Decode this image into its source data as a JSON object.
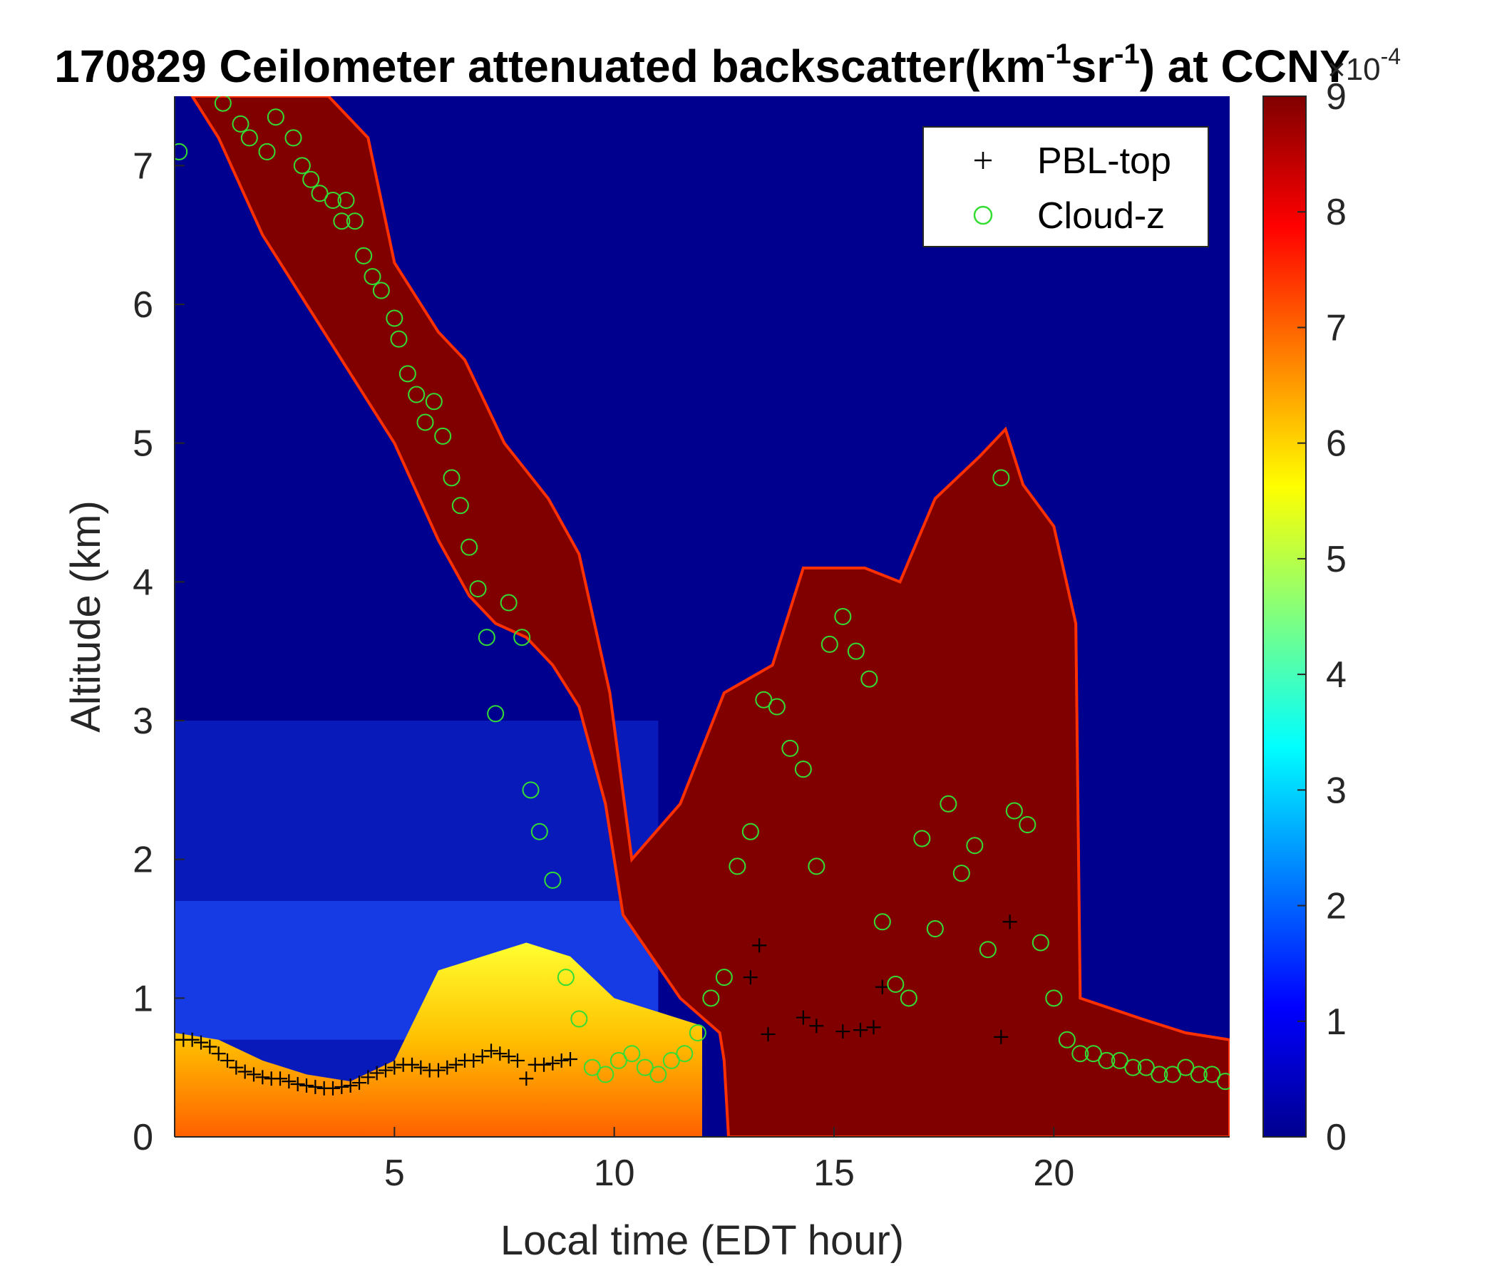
{
  "chart_data": {
    "type": "heatmap",
    "title": {
      "main": "170829 Ceilometer attenuated backscatter(km",
      "sup1": "-1",
      "mid": "sr",
      "sup2": "-1",
      "end": ") at CCNY"
    },
    "xlabel": "Local time (EDT hour)",
    "ylabel": "Altitude (km)",
    "xlim": [
      0,
      24
    ],
    "ylim": [
      0,
      7.5
    ],
    "xticks": [
      5,
      10,
      15,
      20
    ],
    "yticks": [
      0,
      1,
      2,
      3,
      4,
      5,
      6,
      7
    ],
    "colorbar": {
      "colormap": "jet",
      "range": [
        0,
        9
      ],
      "ticks": [
        0,
        1,
        2,
        3,
        4,
        5,
        6,
        7,
        8,
        9
      ],
      "exponent_base": "×10",
      "exponent": "-4"
    },
    "legend": {
      "placement": "top-right",
      "entries": [
        {
          "label": "PBL-top",
          "marker": "+",
          "color": "#000000"
        },
        {
          "label": "Cloud-z",
          "marker": "o",
          "color": "#33dd33"
        }
      ]
    },
    "cloud_layer": {
      "top_km": [
        [
          0.4,
          7.5
        ],
        [
          3.5,
          7.5
        ],
        [
          4.4,
          7.2
        ],
        [
          5.0,
          6.3
        ],
        [
          6.0,
          5.8
        ],
        [
          6.6,
          5.6
        ],
        [
          7.5,
          5.0
        ],
        [
          8.5,
          4.6
        ],
        [
          9.2,
          4.2
        ],
        [
          9.9,
          3.2
        ],
        [
          10.4,
          2.0
        ],
        [
          11.5,
          2.4
        ],
        [
          12.5,
          3.2
        ],
        [
          13.6,
          3.4
        ],
        [
          14.3,
          4.1
        ],
        [
          15.7,
          4.1
        ],
        [
          16.5,
          4.0
        ],
        [
          17.3,
          4.6
        ],
        [
          18.3,
          4.9
        ],
        [
          18.9,
          5.1
        ],
        [
          19.3,
          4.7
        ],
        [
          20.0,
          4.4
        ],
        [
          20.5,
          3.7
        ],
        [
          20.6,
          1.0
        ],
        [
          22.0,
          0.85
        ],
        [
          23.0,
          0.75
        ],
        [
          24.0,
          0.7
        ]
      ],
      "bottom_km": [
        [
          0.4,
          7.5
        ],
        [
          1.0,
          7.2
        ],
        [
          2.0,
          6.5
        ],
        [
          3.0,
          6.0
        ],
        [
          4.0,
          5.5
        ],
        [
          5.0,
          5.0
        ],
        [
          6.0,
          4.3
        ],
        [
          6.7,
          3.9
        ],
        [
          7.3,
          3.7
        ],
        [
          8.0,
          3.6
        ],
        [
          8.6,
          3.4
        ],
        [
          9.2,
          3.1
        ],
        [
          9.8,
          2.4
        ],
        [
          10.2,
          1.6
        ],
        [
          11.5,
          1.0
        ],
        [
          12.4,
          0.75
        ],
        [
          12.5,
          0.55
        ],
        [
          12.6,
          0.0
        ],
        [
          24.0,
          0.0
        ]
      ]
    },
    "pbl_top": {
      "x": [
        0.0,
        0.2,
        0.4,
        0.6,
        0.8,
        1.0,
        1.2,
        1.4,
        1.6,
        1.8,
        2.0,
        2.2,
        2.4,
        2.6,
        2.8,
        3.0,
        3.2,
        3.4,
        3.6,
        3.8,
        4.0,
        4.2,
        4.4,
        4.6,
        4.8,
        5.0,
        5.2,
        5.4,
        5.6,
        5.8,
        6.0,
        6.2,
        6.4,
        6.6,
        6.8,
        7.0,
        7.2,
        7.4,
        7.6,
        7.8,
        8.0,
        8.2,
        8.4,
        8.6,
        8.8,
        9.0,
        13.1,
        13.3,
        13.5,
        14.3,
        14.6,
        15.2,
        15.6,
        15.9,
        16.1,
        18.8,
        19.0
      ],
      "y": [
        0.7,
        0.7,
        0.7,
        0.68,
        0.65,
        0.6,
        0.55,
        0.5,
        0.47,
        0.45,
        0.43,
        0.42,
        0.42,
        0.4,
        0.38,
        0.37,
        0.36,
        0.35,
        0.35,
        0.36,
        0.37,
        0.39,
        0.43,
        0.46,
        0.48,
        0.5,
        0.52,
        0.52,
        0.5,
        0.48,
        0.48,
        0.5,
        0.52,
        0.55,
        0.55,
        0.58,
        0.62,
        0.6,
        0.58,
        0.55,
        0.42,
        0.52,
        0.52,
        0.53,
        0.55,
        0.56,
        1.15,
        1.38,
        0.74,
        0.86,
        0.8,
        0.76,
        0.77,
        0.79,
        1.08,
        0.72,
        1.55
      ]
    },
    "cloud_z": {
      "x": [
        0.1,
        1.1,
        1.5,
        1.7,
        2.1,
        2.3,
        2.7,
        2.9,
        3.1,
        3.3,
        3.6,
        3.8,
        3.9,
        4.1,
        4.3,
        4.5,
        4.7,
        5.0,
        5.1,
        5.3,
        5.5,
        5.7,
        5.9,
        6.1,
        6.3,
        6.5,
        6.7,
        6.9,
        7.1,
        7.3,
        7.6,
        7.9,
        8.1,
        8.3,
        8.6,
        8.9,
        9.2,
        9.5,
        9.8,
        10.1,
        10.4,
        10.7,
        11.0,
        11.3,
        11.6,
        11.9,
        12.2,
        12.5,
        12.8,
        13.1,
        13.4,
        13.7,
        14.0,
        14.3,
        14.6,
        14.9,
        15.2,
        15.5,
        15.8,
        16.1,
        16.4,
        16.7,
        17.0,
        17.3,
        17.6,
        17.9,
        18.2,
        18.5,
        18.8,
        19.1,
        19.4,
        19.7,
        20.0,
        20.3,
        20.6,
        20.9,
        21.2,
        21.5,
        21.8,
        22.1,
        22.4,
        22.7,
        23.0,
        23.3,
        23.6,
        23.9
      ],
      "y": [
        7.1,
        7.45,
        7.3,
        7.2,
        7.1,
        7.35,
        7.2,
        7.0,
        6.9,
        6.8,
        6.75,
        6.6,
        6.75,
        6.6,
        6.35,
        6.2,
        6.1,
        5.9,
        5.75,
        5.5,
        5.35,
        5.15,
        5.3,
        5.05,
        4.75,
        4.55,
        4.25,
        3.95,
        3.6,
        3.05,
        3.85,
        3.6,
        2.5,
        2.2,
        1.85,
        1.15,
        0.85,
        0.5,
        0.45,
        0.55,
        0.6,
        0.5,
        0.45,
        0.55,
        0.6,
        0.75,
        1.0,
        1.15,
        1.95,
        2.2,
        3.15,
        3.1,
        2.8,
        2.65,
        1.95,
        3.55,
        3.75,
        3.5,
        3.3,
        1.55,
        1.1,
        1.0,
        2.15,
        1.5,
        2.4,
        1.9,
        2.1,
        1.35,
        4.75,
        2.35,
        2.25,
        1.4,
        1.0,
        0.7,
        0.6,
        0.6,
        0.55,
        0.55,
        0.5,
        0.5,
        0.45,
        0.45,
        0.5,
        0.45,
        0.45,
        0.4
      ]
    }
  }
}
